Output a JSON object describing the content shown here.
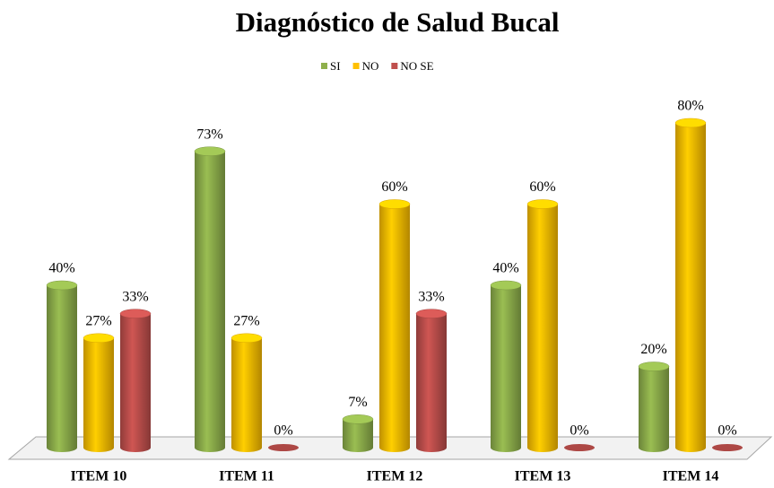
{
  "chart_data": {
    "type": "bar",
    "title": "Diagnóstico de Salud Bucal",
    "categories": [
      "ITEM 10",
      "ITEM 11",
      "ITEM 12",
      "ITEM 13",
      "ITEM 14"
    ],
    "series": [
      {
        "name": "SI",
        "color": "#8fb04c",
        "values": [
          40,
          73,
          7,
          40,
          20
        ],
        "value_labels": [
          "40%",
          "73%",
          "7%",
          "40%",
          "20%"
        ]
      },
      {
        "name": "NO",
        "color": "#ffc000",
        "values": [
          27,
          27,
          60,
          60,
          80
        ],
        "value_labels": [
          "27%",
          "27%",
          "60%",
          "60%",
          "80%"
        ]
      },
      {
        "name": "NO  SE",
        "color": "#c0504d",
        "values": [
          33,
          0,
          33,
          0,
          0
        ],
        "value_labels": [
          "33%",
          "0%",
          "33%",
          "0%",
          "0%"
        ]
      }
    ],
    "legend": "top"
  }
}
